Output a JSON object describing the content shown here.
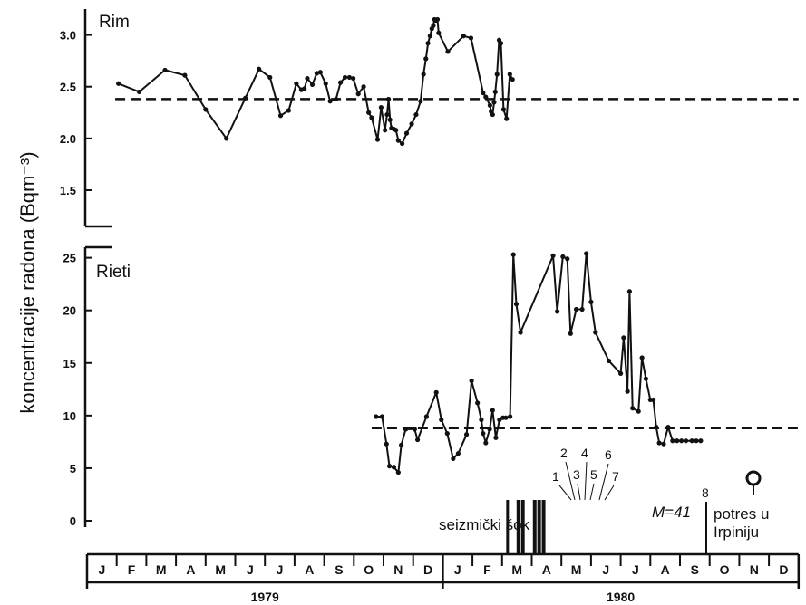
{
  "ylabel": "koncentracije radona (Bqm⁻³)",
  "chart_data": [
    {
      "type": "line",
      "title": "Rim",
      "xlabel": "",
      "ylabel": "koncentracije radona (Bqm⁻³)",
      "ylim": [
        1.15,
        3.25
      ],
      "yticks": [
        "1.5",
        "2.0",
        "2.5",
        "3.0"
      ],
      "mean_level": 2.38,
      "series": [
        {
          "x": [
            1.06,
            1.76,
            2.63,
            3.3,
            4.0,
            4.7,
            5.34,
            5.8,
            6.17,
            6.53,
            6.8,
            7.06,
            7.23,
            7.33,
            7.43,
            7.6,
            7.75,
            7.87,
            8.05,
            8.2,
            8.4,
            8.55,
            8.7,
            8.85,
            8.98,
            9.15,
            9.33,
            9.5,
            9.6,
            9.8,
            9.92,
            10.05,
            10.12,
            10.17,
            10.22,
            10.27,
            10.35,
            10.42,
            10.5,
            10.63,
            10.78,
            10.95,
            11.1,
            11.25,
            11.35,
            11.43,
            11.5,
            11.57,
            11.63,
            11.68,
            11.72,
            11.76,
            11.82,
            11.86,
            12.17,
            12.7,
            12.95,
            13.36,
            13.45,
            13.59,
            13.63,
            13.68,
            13.73,
            13.77,
            13.83,
            13.9,
            13.96,
            14.05,
            14.15,
            14.26,
            14.35
          ],
          "y": [
            2.53,
            2.45,
            2.66,
            2.61,
            2.28,
            2.0,
            2.39,
            2.67,
            2.59,
            2.22,
            2.27,
            2.53,
            2.47,
            2.48,
            2.58,
            2.52,
            2.63,
            2.64,
            2.53,
            2.36,
            2.38,
            2.54,
            2.59,
            2.59,
            2.58,
            2.43,
            2.5,
            2.25,
            2.2,
            1.99,
            2.3,
            2.08,
            2.23,
            2.38,
            2.18,
            2.1,
            2.09,
            2.08,
            1.98,
            1.95,
            2.05,
            2.14,
            2.23,
            2.36,
            2.62,
            2.77,
            2.92,
            2.99,
            3.06,
            3.09,
            3.15,
            3.14,
            3.15,
            3.02,
            2.84,
            2.99,
            2.97,
            2.44,
            2.4,
            2.32,
            2.26,
            2.23,
            2.35,
            2.45,
            2.62,
            2.95,
            2.92,
            2.28,
            2.19,
            2.62,
            2.57
          ]
        }
      ]
    },
    {
      "type": "line",
      "title": "Rieti",
      "xlabel": "",
      "ylabel": "koncentracije radona (Bqm⁻³)",
      "ylim": [
        0,
        26
      ],
      "yticks": [
        "0",
        "5",
        "10",
        "15",
        "20",
        "25"
      ],
      "mean_level": 8.8,
      "series": [
        {
          "x": [
            9.75,
            9.95,
            10.1,
            10.2,
            10.35,
            10.5,
            10.6,
            10.75,
            11.05,
            11.15,
            11.45,
            11.78,
            11.95,
            12.15,
            12.35,
            12.52,
            12.8,
            12.97,
            13.17,
            13.3,
            13.36,
            13.45,
            13.58,
            13.68,
            13.79,
            13.91,
            14.03,
            14.13,
            14.27,
            14.38,
            14.48,
            14.62
          ],
          "y": [
            9.9,
            9.9,
            7.3,
            5.2,
            5.1,
            4.6,
            7.2,
            8.7,
            8.7,
            7.7,
            9.9,
            12.2,
            9.6,
            8.3,
            5.9,
            6.4,
            8.2,
            13.3,
            11.2,
            9.6,
            8.3,
            7.4,
            8.7,
            10.5,
            7.9,
            9.6,
            9.8,
            9.8,
            9.9,
            25.3,
            20.6,
            17.9
          ]
        },
        {
          "x": [
            15.72,
            15.86,
            16.05,
            16.2,
            16.31,
            16.5,
            16.7,
            16.84,
            17.0,
            17.15,
            17.6,
            18.0,
            18.1,
            18.23,
            18.3,
            18.4,
            18.6,
            18.72,
            18.85,
            19.0,
            19.1,
            19.2,
            19.3,
            19.45,
            19.6,
            19.75,
            19.9,
            20.05,
            20.2,
            20.4,
            20.55,
            20.7
          ],
          "y": [
            25.2,
            19.9,
            25.1,
            24.9,
            17.8,
            20.1,
            20.1,
            25.4,
            20.8,
            17.9,
            15.2,
            14.0,
            17.4,
            12.3,
            21.8,
            10.7,
            10.4,
            15.5,
            13.5,
            11.5,
            11.5,
            8.9,
            7.4,
            7.3,
            8.9,
            7.6,
            7.6,
            7.6,
            7.6,
            7.6,
            7.6,
            7.6
          ]
        }
      ]
    }
  ],
  "axis": {
    "months": [
      "J",
      "F",
      "M",
      "A",
      "M",
      "J",
      "J",
      "A",
      "S",
      "O",
      "N",
      "D",
      "J",
      "F",
      "M",
      "A",
      "M",
      "J",
      "J",
      "A",
      "S",
      "O",
      "N",
      "D"
    ],
    "years": [
      "1979",
      "1980"
    ]
  },
  "annotations": {
    "shock_label": "seizmički šok",
    "shock_numbers": [
      "1",
      "2",
      "3",
      "4",
      "5",
      "6",
      "7"
    ],
    "quake_number": "8",
    "magnitude": "M=41",
    "irpinia_line1": "potres u",
    "irpinia_line2": "Irpiniju"
  },
  "colors": {
    "ink": "#111111",
    "background": "#ffffff"
  }
}
